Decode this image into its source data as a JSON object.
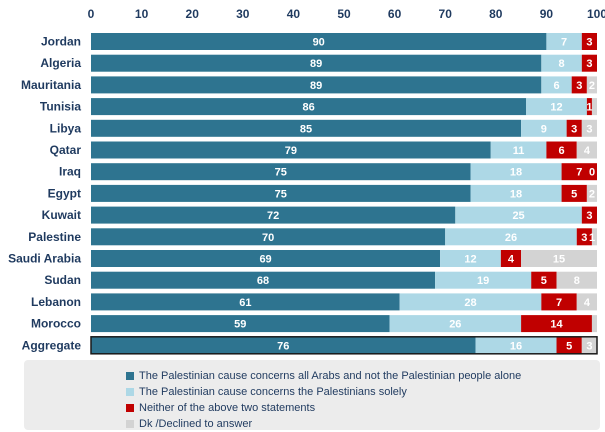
{
  "chart_data": {
    "type": "bar",
    "orientation": "horizontal",
    "stacked": true,
    "categories": [
      "Jordan",
      "Algeria",
      "Mauritania",
      "Tunisia",
      "Libya",
      "Qatar",
      "Iraq",
      "Egypt",
      "Kuwait",
      "Palestine",
      "Saudi Arabia",
      "Sudan",
      "Lebanon",
      "Morocco",
      "Aggregate"
    ],
    "series": [
      {
        "name": "The Palestinian cause concerns all Arabs and not the Palestinian people alone",
        "color": "#2e7490",
        "values": [
          90,
          89,
          89,
          86,
          85,
          79,
          75,
          75,
          72,
          70,
          69,
          68,
          61,
          59,
          76
        ]
      },
      {
        "name": "The Palestinian cause concerns the Palestinians solely",
        "color": "#add8e6",
        "values": [
          7,
          8,
          6,
          12,
          9,
          11,
          18,
          18,
          25,
          26,
          12,
          19,
          28,
          26,
          16
        ]
      },
      {
        "name": "Neither of the above two statements",
        "color": "#c00000",
        "values": [
          3,
          3,
          3,
          1,
          3,
          6,
          7,
          5,
          3,
          3,
          4,
          5,
          7,
          14,
          5
        ]
      },
      {
        "name": "Dk /Declined to answer",
        "color": "#d3d3d3",
        "values": [
          0,
          0,
          2,
          1,
          3,
          4,
          0,
          2,
          0,
          1,
          15,
          8,
          4,
          1,
          3
        ]
      }
    ],
    "value_labels": [
      [
        "90",
        "7",
        "3",
        ""
      ],
      [
        "89",
        "8",
        "3",
        ""
      ],
      [
        "89",
        "6",
        "3",
        "2"
      ],
      [
        "86",
        "12",
        "1",
        ""
      ],
      [
        "85",
        "9",
        "3",
        "3"
      ],
      [
        "79",
        "11",
        "6",
        "4"
      ],
      [
        "75",
        "18",
        "7",
        "0"
      ],
      [
        "75",
        "18",
        "5",
        "2"
      ],
      [
        "72",
        "25",
        "3",
        ""
      ],
      [
        "70",
        "26",
        "3",
        "1"
      ],
      [
        "69",
        "12",
        "4",
        "15"
      ],
      [
        "68",
        "19",
        "5",
        "8"
      ],
      [
        "61",
        "28",
        "7",
        "4"
      ],
      [
        "59",
        "26",
        "14",
        ""
      ],
      [
        "76",
        "16",
        "5",
        "3"
      ]
    ],
    "xticks": [
      "0",
      "10",
      "20",
      "30",
      "40",
      "50",
      "60",
      "70",
      "80",
      "90",
      "100"
    ],
    "xlim": [
      0,
      100
    ],
    "axis_position": "top",
    "legend_position": "bottom",
    "highlighted_category": "Aggregate",
    "title": "",
    "xlabel": "",
    "ylabel": ""
  }
}
